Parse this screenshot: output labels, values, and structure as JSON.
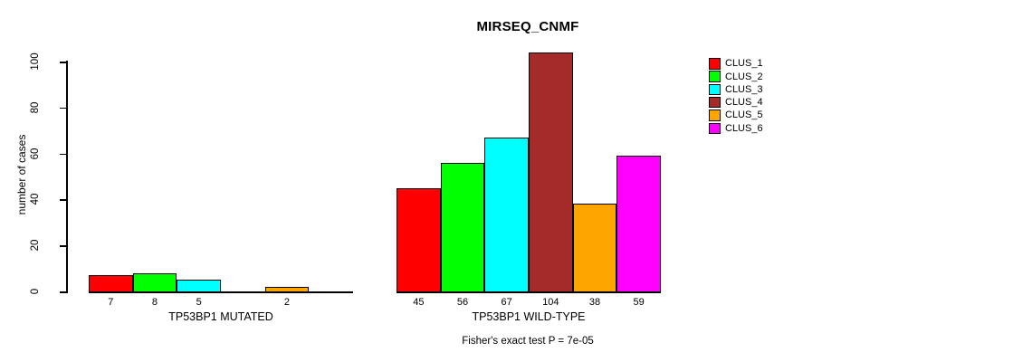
{
  "chart_data": {
    "type": "bar",
    "title": "MIRSEQ_CNMF",
    "ylabel": "number of cases",
    "ylim": [
      0,
      100
    ],
    "yticks": [
      0,
      20,
      40,
      60,
      80,
      100
    ],
    "grid": false,
    "legend_position": "right",
    "clusters": [
      {
        "name": "CLUS_1",
        "color": "#FF0000"
      },
      {
        "name": "CLUS_2",
        "color": "#00FF00"
      },
      {
        "name": "CLUS_3",
        "color": "#00FFFF"
      },
      {
        "name": "CLUS_4",
        "color": "#A52A2A"
      },
      {
        "name": "CLUS_5",
        "color": "#FFA500"
      },
      {
        "name": "CLUS_6",
        "color": "#FF00FF"
      }
    ],
    "groups": [
      {
        "label": "TP53BP1 MUTATED",
        "values": [
          7,
          8,
          5,
          0,
          2,
          0
        ],
        "bar_labels": [
          "7",
          "8",
          "5",
          "",
          "2",
          ""
        ]
      },
      {
        "label": "TP53BP1 WILD-TYPE",
        "values": [
          45,
          56,
          67,
          104,
          38,
          59
        ],
        "bar_labels": [
          "45",
          "56",
          "67",
          "104",
          "38",
          "59"
        ]
      }
    ],
    "footnote": "Fisher's exact test P = 7e-05"
  }
}
